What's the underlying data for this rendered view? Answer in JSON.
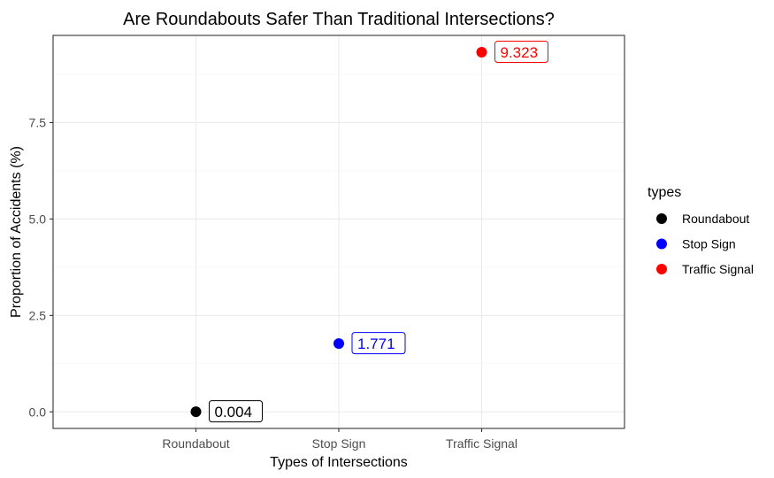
{
  "chart_data": {
    "type": "scatter",
    "title": "Are Roundabouts Safer Than Traditional Intersections?",
    "xlabel": "Types of Intersections",
    "ylabel": "Proportion of Accidents (%)",
    "categories": [
      "Roundabout",
      "Stop Sign",
      "Traffic Signal"
    ],
    "values": [
      0.004,
      1.771,
      9.323
    ],
    "data_labels": [
      "0.004",
      "1.771",
      "9.323"
    ],
    "colors": [
      "#000000",
      "#0000ff",
      "#ff0000"
    ],
    "ylim": [
      -0.43,
      9.76
    ],
    "yticks": [
      0.0,
      2.5,
      5.0,
      7.5
    ],
    "ytick_labels": [
      "0.0",
      "2.5",
      "5.0",
      "7.5"
    ],
    "grid": true,
    "legend": {
      "title": "types",
      "position": "right",
      "entries": [
        "Roundabout",
        "Stop Sign",
        "Traffic Signal"
      ]
    }
  }
}
